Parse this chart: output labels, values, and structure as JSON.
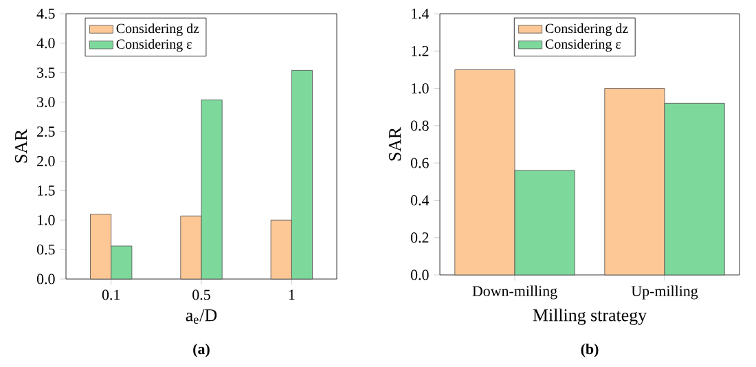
{
  "chart_data": [
    {
      "type": "bar",
      "categories": [
        "0.1",
        "0.5",
        "1"
      ],
      "xlabel": "a$_{e}$/D",
      "ylabel": "SAR",
      "series": [
        {
          "name": "Considering dz",
          "color": "#fdc896",
          "values": [
            1.1,
            1.07,
            1.0
          ]
        },
        {
          "name": "Considering ε",
          "color": "#7dd89c",
          "values": [
            0.56,
            3.04,
            3.54
          ]
        }
      ],
      "ylim": [
        0,
        4.5
      ],
      "yticks": [
        {
          "value": 0,
          "label": "0.0"
        },
        0.5,
        {
          "value": 1,
          "label": "1.0"
        },
        1.5,
        {
          "value": 2,
          "label": "2.0"
        },
        2.5,
        {
          "value": 3,
          "label": "3.0"
        },
        3.5,
        {
          "value": 4,
          "label": "4.0"
        },
        4.5
      ],
      "legend": "top left",
      "annotations": [
        "(a)"
      ]
    },
    {
      "type": "bar",
      "categories": [
        "Down-milling",
        "Up-milling"
      ],
      "xlabel": "Milling strategy",
      "ylabel": "SAR",
      "series": [
        {
          "name": "Considering dz",
          "color": "#fdc896",
          "values": [
            1.1,
            1.0
          ]
        },
        {
          "name": "Considering ε",
          "color": "#7dd89c",
          "values": [
            0.56,
            0.92
          ]
        }
      ],
      "ylim": [
        0,
        1.4
      ],
      "yticks": [
        {
          "value": 0,
          "label": "0.0"
        },
        0.2,
        0.4,
        0.6,
        0.8,
        {
          "value": 1,
          "label": "1.0"
        },
        1.2,
        1.4
      ],
      "legend": "top",
      "annotations": [
        "(b)"
      ]
    }
  ]
}
